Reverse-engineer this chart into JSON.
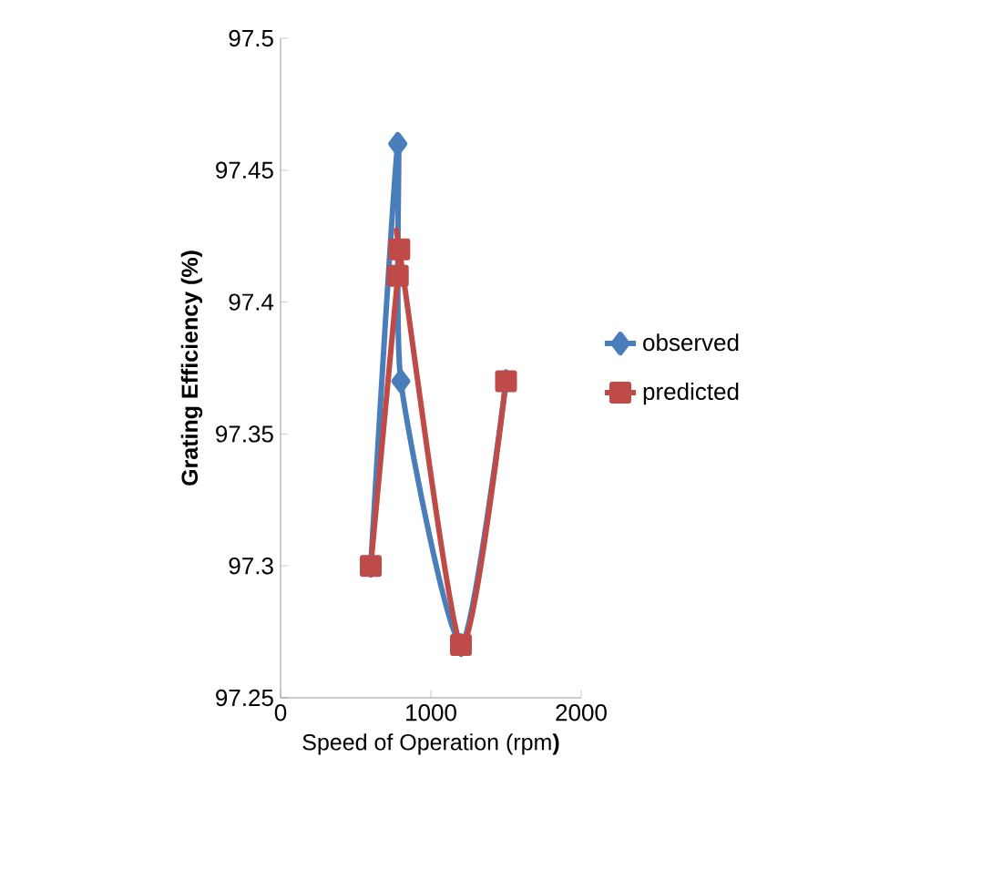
{
  "chart_data": {
    "type": "line",
    "xlabel": "Speed of Operation (rpm**)**",
    "ylabel": "Grating Efficiency (%)",
    "xlim": [
      0,
      2000
    ],
    "xticks": [
      0,
      1000,
      2000
    ],
    "ylim": [
      97.25,
      97.5
    ],
    "yticks": [
      97.25,
      97.3,
      97.35,
      97.4,
      97.45,
      97.5
    ],
    "legend": "right",
    "grid": false,
    "series": [
      {
        "name": "observed",
        "color": "#4a7ebb",
        "marker": "diamond",
        "x": [
          600,
          780,
          800,
          1200,
          1500
        ],
        "values": [
          97.3,
          97.46,
          97.37,
          97.27,
          97.37
        ]
      },
      {
        "name": "predicted",
        "color": "#be4b48",
        "marker": "square",
        "x": [
          600,
          780,
          790,
          1200,
          1500
        ],
        "values": [
          97.3,
          97.41,
          97.42,
          97.27,
          97.37
        ]
      }
    ]
  }
}
